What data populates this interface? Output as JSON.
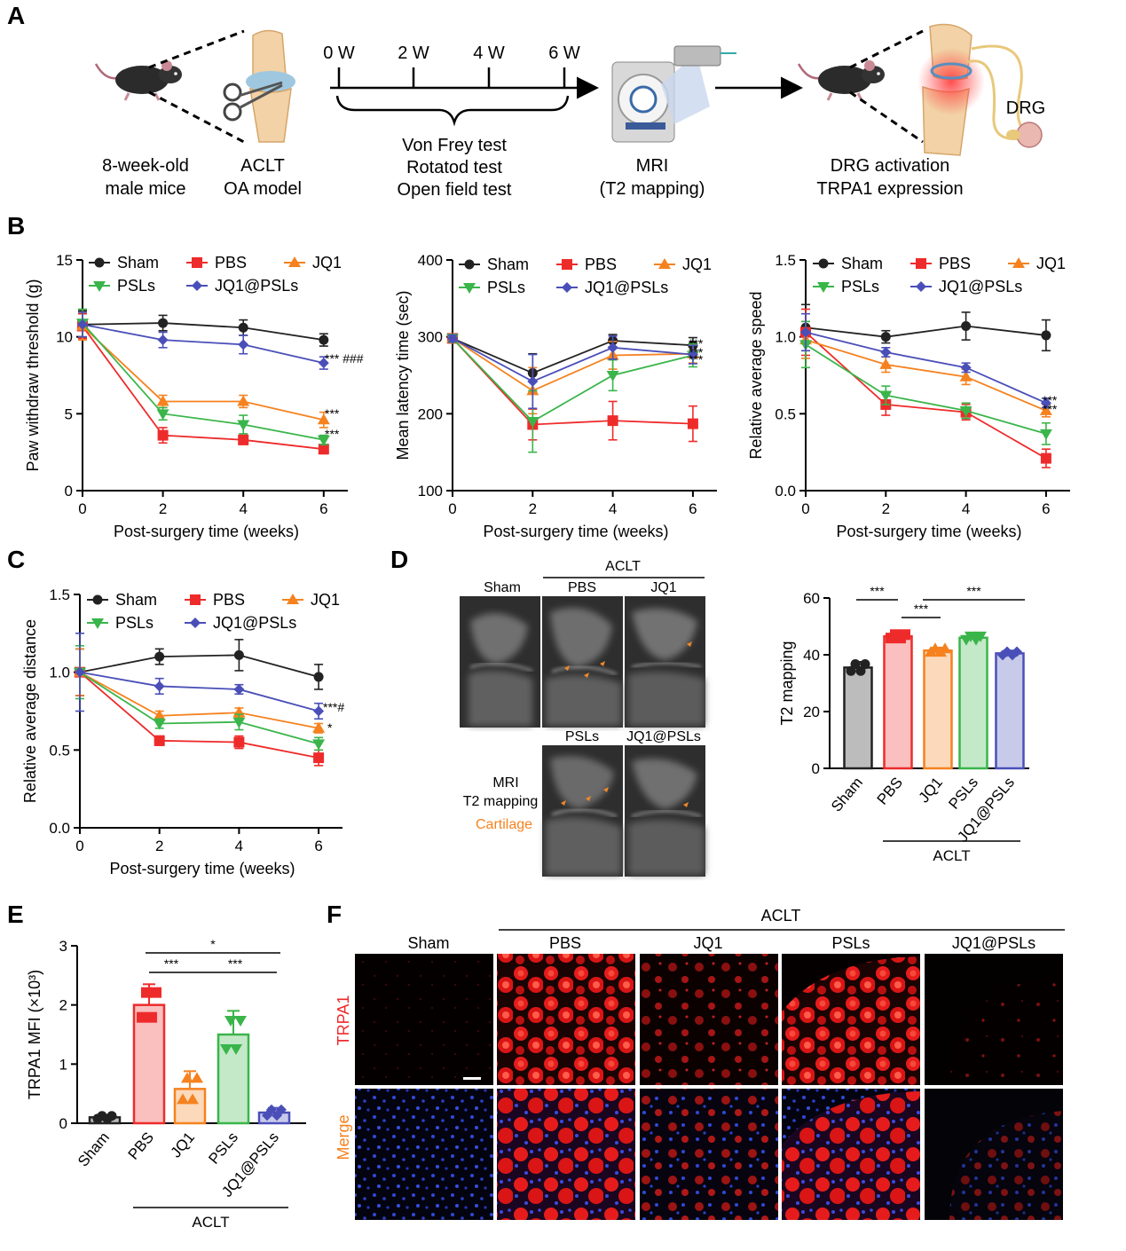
{
  "colors": {
    "sham": "#222222",
    "pbs": "#ee2b2b",
    "jq1": "#f5821f",
    "psls": "#3ab54a",
    "jq1psls": "#4a4fb8",
    "arrow": "#f0882a",
    "trpa1": "#ee2b2b",
    "merge": "#f5821f"
  },
  "panel_labels": {
    "a": "A",
    "b": "B",
    "c": "C",
    "d": "D",
    "e": "E",
    "f": "F"
  },
  "schematic": {
    "weeks": [
      "0 W",
      "2 W",
      "4 W",
      "6 W"
    ],
    "mice_label_1": "8-week-old",
    "mice_label_2": "male mice",
    "aclt_label_1": "ACLT",
    "aclt_label_2": "OA model",
    "tests": [
      "Von Frey test",
      "Rotatod test",
      "Open field test"
    ],
    "mri_label_1": "MRI",
    "mri_label_2": "(T2 mapping)",
    "drg_text": "DRG",
    "outcome_1": "DRG activation",
    "outcome_2": "TRPA1 expression",
    "icons": [
      "mouse-icon",
      "knee-scissors-icon",
      "mri-scanner-icon",
      "knee-drg-icon"
    ]
  },
  "legend_names": {
    "sham": "Sham",
    "pbs": "PBS",
    "jq1": "JQ1",
    "psls": "PSLs",
    "jq1psls": "JQ1@PSLs"
  },
  "chart_data": [
    {
      "id": "B1",
      "type": "line",
      "xlabel": "Post-surgery time (weeks)",
      "ylabel": "Paw withdraw threshold (g)",
      "x": [
        0,
        2,
        4,
        6
      ],
      "xlim": [
        0,
        6.6
      ],
      "ylim": [
        0,
        15
      ],
      "yticks": [
        "0",
        "5",
        "10",
        "15"
      ],
      "series": [
        {
          "key": "sham",
          "values": [
            10.8,
            10.9,
            10.6,
            9.8
          ],
          "err": [
            0.9,
            0.5,
            0.5,
            0.4
          ]
        },
        {
          "key": "pbs",
          "values": [
            10.7,
            3.6,
            3.3,
            2.7
          ],
          "err": [
            0.8,
            0.5,
            0.3,
            0.3
          ]
        },
        {
          "key": "jq1",
          "values": [
            10.7,
            5.8,
            5.8,
            4.6
          ],
          "err": [
            0.9,
            0.4,
            0.4,
            0.5
          ]
        },
        {
          "key": "psls",
          "values": [
            10.9,
            5.0,
            4.3,
            3.3
          ],
          "err": [
            0.9,
            0.4,
            0.6,
            0.3
          ]
        },
        {
          "key": "jq1psls",
          "values": [
            10.8,
            9.8,
            9.5,
            8.3
          ],
          "err": [
            0.8,
            0.5,
            0.6,
            0.4
          ]
        }
      ],
      "annotations": [
        "*** ###",
        "***",
        "***"
      ]
    },
    {
      "id": "B2",
      "type": "line",
      "xlabel": "Post-surgery time (weeks)",
      "ylabel": "Mean latency time (sec)",
      "x": [
        0,
        2,
        4,
        6
      ],
      "xlim": [
        0,
        6.6
      ],
      "ylim": [
        100,
        400
      ],
      "yticks": [
        "100",
        "200",
        "300",
        "400"
      ],
      "series": [
        {
          "key": "sham",
          "values": [
            298,
            253,
            295,
            289
          ],
          "err": [
            4,
            25,
            8,
            10
          ]
        },
        {
          "key": "pbs",
          "values": [
            298,
            186,
            191,
            187
          ],
          "err": [
            5,
            20,
            25,
            23
          ]
        },
        {
          "key": "jq1",
          "values": [
            298,
            230,
            276,
            278
          ],
          "err": [
            4,
            30,
            18,
            12
          ]
        },
        {
          "key": "psls",
          "values": [
            298,
            190,
            250,
            276
          ],
          "err": [
            5,
            40,
            20,
            15
          ]
        },
        {
          "key": "jq1psls",
          "values": [
            298,
            242,
            286,
            277
          ],
          "err": [
            4,
            35,
            15,
            12
          ]
        }
      ],
      "annotations": [
        "***",
        "***",
        "***"
      ]
    },
    {
      "id": "B3",
      "type": "line",
      "xlabel": "Post-surgery time (weeks)",
      "ylabel": "Relative average speed",
      "x": [
        0,
        2,
        4,
        6
      ],
      "xlim": [
        0,
        6.6
      ],
      "ylim": [
        0,
        1.5
      ],
      "yticks": [
        "0.0",
        "0.5",
        "1.0",
        "1.5"
      ],
      "series": [
        {
          "key": "sham",
          "values": [
            1.06,
            1.0,
            1.07,
            1.01
          ],
          "err": [
            0.15,
            0.04,
            0.09,
            0.1
          ]
        },
        {
          "key": "pbs",
          "values": [
            1.03,
            0.56,
            0.51,
            0.21
          ],
          "err": [
            0.15,
            0.07,
            0.05,
            0.06
          ]
        },
        {
          "key": "jq1",
          "values": [
            0.98,
            0.82,
            0.74,
            0.52
          ],
          "err": [
            0.12,
            0.05,
            0.05,
            0.04
          ]
        },
        {
          "key": "psls",
          "values": [
            0.95,
            0.62,
            0.52,
            0.37
          ],
          "err": [
            0.15,
            0.06,
            0.05,
            0.07
          ]
        },
        {
          "key": "jq1psls",
          "values": [
            1.03,
            0.9,
            0.8,
            0.57
          ],
          "err": [
            0.12,
            0.03,
            0.03,
            0.03
          ]
        }
      ],
      "annotations": [
        "***",
        "***"
      ]
    },
    {
      "id": "C",
      "type": "line",
      "xlabel": "Post-surgery time (weeks)",
      "ylabel": "Relative average distance",
      "x": [
        0,
        2,
        4,
        6
      ],
      "xlim": [
        0,
        6.6
      ],
      "ylim": [
        0,
        1.5
      ],
      "yticks": [
        "0.0",
        "0.5",
        "1.0",
        "1.5"
      ],
      "series": [
        {
          "key": "sham",
          "values": [
            1.0,
            1.1,
            1.11,
            0.97
          ],
          "err": [
            0.15,
            0.05,
            0.1,
            0.08
          ]
        },
        {
          "key": "pbs",
          "values": [
            1.0,
            0.56,
            0.55,
            0.45
          ],
          "err": [
            0.15,
            0.03,
            0.04,
            0.05
          ]
        },
        {
          "key": "jq1",
          "values": [
            1.0,
            0.72,
            0.74,
            0.64
          ],
          "err": [
            0.15,
            0.03,
            0.03,
            0.03
          ]
        },
        {
          "key": "psls",
          "values": [
            1.0,
            0.67,
            0.68,
            0.54
          ],
          "err": [
            0.17,
            0.03,
            0.05,
            0.04
          ]
        },
        {
          "key": "jq1psls",
          "values": [
            1.0,
            0.91,
            0.89,
            0.75
          ],
          "err": [
            0.25,
            0.05,
            0.03,
            0.05
          ]
        }
      ],
      "annotations": [
        "***#",
        "*"
      ]
    },
    {
      "id": "D",
      "type": "bar",
      "ylabel": "T2 mapping",
      "ylim": [
        0,
        60
      ],
      "yticks": [
        "0",
        "20",
        "40",
        "60"
      ],
      "categories": [
        "Sham",
        "PBS",
        "JQ1",
        "PSLs",
        "JQ1@PSLs"
      ],
      "values": [
        35.5,
        46.5,
        41.5,
        46,
        40.5
      ],
      "err": [
        2,
        1,
        1,
        1,
        1
      ],
      "group_label": "ACLT",
      "significance": [
        "***",
        "***",
        "***"
      ]
    },
    {
      "id": "E",
      "type": "bar",
      "ylabel": "TRPA1 MFI (×10³)",
      "ylim": [
        0,
        3
      ],
      "yticks": [
        "0",
        "1",
        "2",
        "3"
      ],
      "categories": [
        "Sham",
        "PBS",
        "JQ1",
        "PSLs",
        "JQ1@PSLs"
      ],
      "values": [
        0.1,
        2.0,
        0.58,
        1.5,
        0.18
      ],
      "err": [
        0.04,
        0.35,
        0.3,
        0.4,
        0.08
      ],
      "group_label": "ACLT",
      "significance": [
        "***",
        "***",
        "*"
      ]
    }
  ],
  "panel_d": {
    "sham": "Sham",
    "aclt": "ACLT",
    "pbs": "PBS",
    "jq1": "JQ1",
    "psls": "PSLs",
    "jq1psls": "JQ1@PSLs",
    "caption_1": "MRI",
    "caption_2": "T2 mapping",
    "caption_3": "Cartilage"
  },
  "panel_f": {
    "aclt": "ACLT",
    "columns": [
      "Sham",
      "PBS",
      "JQ1",
      "PSLs",
      "JQ1@PSLs"
    ],
    "rows": [
      "TRPA1",
      "Merge"
    ]
  }
}
